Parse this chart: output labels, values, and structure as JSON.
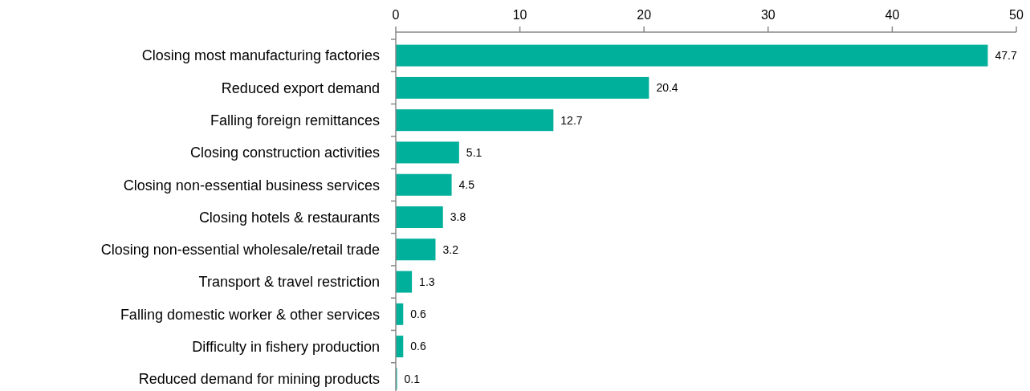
{
  "chart_data": {
    "type": "bar",
    "orientation": "horizontal",
    "categories": [
      "Closing most manufacturing factories",
      "Reduced export demand",
      "Falling foreign remittances",
      "Closing construction activities",
      "Closing non-essential business services",
      "Closing hotels & restaurants",
      "Closing non-essential wholesale/retail trade",
      "Transport & travel restriction",
      "Falling domestic worker & other services",
      "Difficulty in fishery production",
      "Reduced demand for mining products"
    ],
    "values": [
      47.7,
      20.4,
      12.7,
      5.1,
      4.5,
      3.8,
      3.2,
      1.3,
      0.6,
      0.6,
      0.1
    ],
    "color": "#00b09b",
    "xlim": [
      0,
      50
    ],
    "xticks": [
      0,
      10,
      20,
      30,
      40,
      50
    ],
    "data_labels": true,
    "grid": false
  }
}
